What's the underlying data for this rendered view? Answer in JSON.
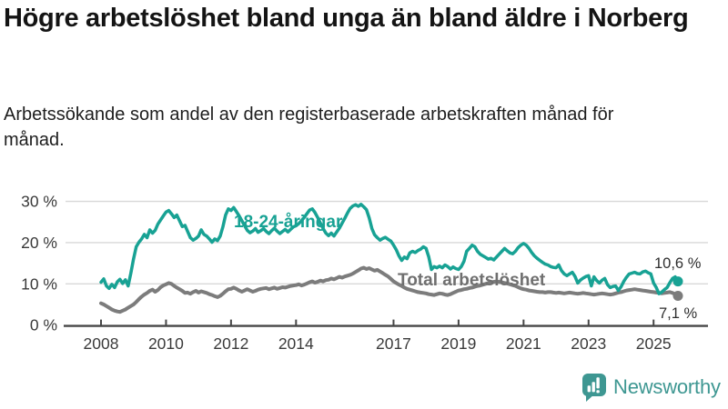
{
  "header": {
    "title": "Högre arbetslöshet bland unga än bland äldre i Norberg",
    "subtitle": "Arbetssökande som andel av den registerbaserade arbetskraften månad för månad."
  },
  "chart_data": {
    "type": "line",
    "title": "Högre arbetslöshet bland unga än bland äldre i Norberg",
    "subtitle": "Arbetssökande som andel av den registerbaserade arbetskraften månad för månad.",
    "unit": "%",
    "grid": "horizontal",
    "ylim": [
      0,
      31
    ],
    "y_ticks": [
      {
        "value": 0,
        "label": "0 %"
      },
      {
        "value": 10,
        "label": "10 %"
      },
      {
        "value": 20,
        "label": "20 %"
      },
      {
        "value": 30,
        "label": "30 %"
      }
    ],
    "x_ticks": [
      {
        "year": 2008,
        "label": "2008"
      },
      {
        "year": 2010,
        "label": "2010"
      },
      {
        "year": 2012,
        "label": "2012"
      },
      {
        "year": 2014,
        "label": "2014"
      },
      {
        "year": 2017,
        "label": "2017"
      },
      {
        "year": 2019,
        "label": "2019"
      },
      {
        "year": 2021,
        "label": "2021"
      },
      {
        "year": 2023,
        "label": "2023"
      },
      {
        "year": 2025,
        "label": "2025"
      }
    ],
    "x_range": {
      "start": "2008-01",
      "end": "2025-10",
      "frequency": "monthly"
    },
    "series": [
      {
        "id": "youth",
        "name": "18-24-åringar",
        "color": "#18A294",
        "label_color": "#18A294",
        "end_label": "10,6 %",
        "end_value": 10.6,
        "values": [
          10.4,
          11.2,
          9.5,
          8.9,
          9.9,
          9.1,
          10.5,
          11.1,
          10.1,
          11.0,
          9.5,
          12.5,
          16.0,
          19.0,
          20.1,
          20.9,
          22.0,
          21.2,
          23.1,
          22.3,
          23.0,
          24.5,
          25.5,
          26.5,
          27.4,
          27.8,
          27.0,
          26.1,
          26.7,
          25.3,
          23.9,
          24.2,
          22.7,
          21.2,
          20.6,
          21.0,
          21.6,
          23.1,
          22.0,
          21.6,
          20.9,
          20.1,
          20.9,
          20.5,
          21.6,
          23.8,
          26.7,
          28.2,
          27.8,
          28.5,
          27.5,
          26.5,
          25.3,
          24.1,
          23.0,
          22.4,
          22.8,
          23.4,
          22.5,
          22.9,
          23.4,
          22.7,
          22.2,
          22.9,
          23.5,
          22.8,
          22.2,
          22.7,
          23.2,
          22.6,
          23.2,
          23.8,
          24.1,
          24.6,
          25.3,
          26.1,
          27.0,
          27.9,
          28.2,
          27.3,
          26.1,
          24.7,
          23.4,
          22.3,
          21.7,
          22.3,
          21.6,
          22.6,
          23.5,
          24.7,
          25.9,
          27.2,
          28.3,
          28.9,
          29.2,
          28.8,
          29.3,
          28.7,
          28.0,
          26.0,
          23.4,
          21.9,
          21.2,
          20.6,
          21.0,
          21.3,
          20.8,
          20.4,
          19.4,
          18.3,
          16.8,
          15.7,
          16.5,
          16.1,
          17.5,
          17.9,
          17.6,
          18.1,
          18.4,
          19.0,
          18.6,
          16.5,
          13.5,
          14.2,
          13.9,
          14.3,
          13.9,
          14.6,
          14.2,
          13.6,
          14.1,
          13.7,
          13.5,
          14.2,
          15.5,
          17.9,
          18.6,
          19.4,
          19.0,
          17.9,
          17.2,
          16.8,
          16.4,
          16.0,
          16.2,
          15.8,
          16.5,
          17.2,
          17.9,
          18.6,
          18.0,
          17.5,
          17.3,
          17.9,
          18.8,
          19.4,
          19.8,
          19.4,
          18.6,
          17.6,
          16.8,
          16.2,
          15.7,
          15.2,
          14.8,
          14.6,
          14.2,
          14.0,
          13.9,
          14.6,
          13.2,
          12.4,
          12.0,
          12.4,
          12.8,
          11.8,
          10.2,
          10.9,
          11.4,
          11.8,
          12.0,
          9.5,
          11.7,
          10.8,
          10.2,
          10.9,
          11.3,
          9.8,
          9.1,
          9.4,
          9.5,
          8.4,
          9.3,
          10.6,
          11.6,
          12.4,
          12.6,
          12.8,
          12.5,
          12.4,
          12.9,
          13.1,
          12.7,
          12.4,
          10.2,
          9.1,
          7.6,
          8.0,
          8.6,
          9.1,
          10.3,
          11.3,
          11.7,
          10.6
        ]
      },
      {
        "id": "total",
        "name": "Total arbetslöshet",
        "color": "#7C7C7C",
        "label_color": "#6F6F6F",
        "end_label": "7,1 %",
        "end_value": 7.1,
        "values": [
          5.3,
          5.0,
          4.6,
          4.2,
          3.8,
          3.5,
          3.3,
          3.2,
          3.5,
          3.8,
          4.2,
          4.6,
          5.0,
          5.6,
          6.3,
          6.9,
          7.4,
          7.8,
          8.3,
          8.6,
          8.1,
          8.5,
          9.2,
          9.6,
          9.9,
          10.2,
          10.0,
          9.5,
          9.1,
          8.7,
          8.3,
          7.8,
          7.9,
          7.6,
          8.0,
          8.3,
          7.9,
          8.2,
          8.0,
          7.8,
          7.5,
          7.3,
          7.0,
          6.8,
          7.1,
          7.6,
          8.2,
          8.7,
          8.8,
          9.1,
          8.8,
          8.4,
          8.1,
          8.4,
          8.7,
          8.4,
          8.1,
          8.3,
          8.6,
          8.8,
          8.9,
          9.0,
          8.7,
          8.9,
          9.1,
          8.8,
          9.0,
          9.2,
          9.1,
          9.3,
          9.5,
          9.6,
          9.7,
          9.9,
          9.6,
          9.8,
          10.1,
          10.4,
          10.6,
          10.3,
          10.5,
          10.8,
          10.6,
          10.9,
          11.0,
          11.3,
          11.1,
          11.4,
          11.7,
          11.5,
          11.8,
          12.0,
          12.2,
          12.5,
          12.9,
          13.3,
          13.7,
          13.9,
          13.6,
          13.8,
          13.5,
          13.2,
          13.4,
          13.0,
          12.6,
          12.2,
          11.8,
          11.2,
          10.6,
          10.2,
          9.8,
          9.5,
          9.1,
          8.8,
          8.6,
          8.4,
          8.2,
          8.0,
          7.9,
          7.8,
          7.7,
          7.5,
          7.4,
          7.3,
          7.5,
          7.7,
          7.6,
          7.4,
          7.3,
          7.5,
          7.8,
          8.1,
          8.4,
          8.5,
          8.7,
          8.8,
          9.0,
          9.1,
          9.3,
          9.5,
          9.6,
          9.8,
          10.0,
          10.2,
          10.3,
          10.5,
          10.6,
          10.5,
          10.4,
          10.2,
          10.1,
          9.9,
          9.7,
          9.5,
          9.2,
          8.9,
          8.7,
          8.6,
          8.4,
          8.3,
          8.2,
          8.1,
          8.0,
          8.0,
          7.9,
          8.0,
          8.0,
          7.9,
          7.8,
          7.9,
          7.8,
          7.7,
          7.8,
          7.9,
          7.8,
          7.7,
          7.6,
          7.7,
          7.8,
          7.7,
          7.6,
          7.5,
          7.4,
          7.5,
          7.6,
          7.7,
          7.6,
          7.5,
          7.4,
          7.5,
          7.7,
          7.9,
          8.0,
          8.2,
          8.4,
          8.5,
          8.6,
          8.7,
          8.6,
          8.5,
          8.4,
          8.3,
          8.2,
          8.1,
          8.0,
          7.9,
          7.8,
          7.7,
          7.8,
          7.9,
          8.0,
          7.8,
          7.5,
          7.1
        ]
      }
    ]
  },
  "footer": {
    "brand": "Newsworthy"
  }
}
